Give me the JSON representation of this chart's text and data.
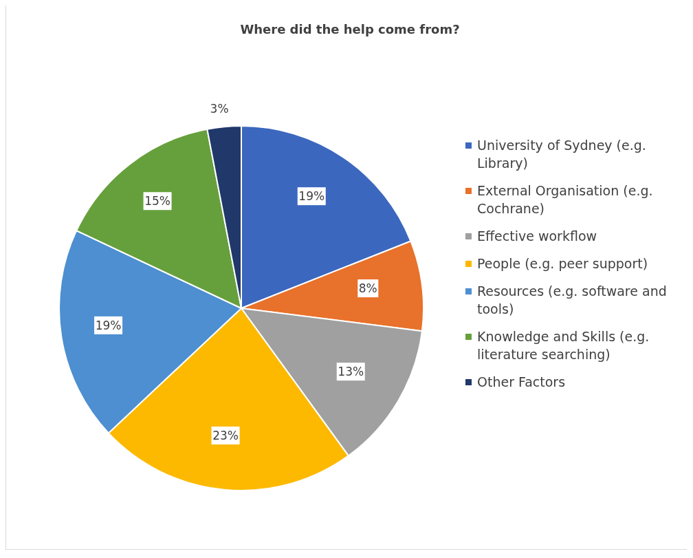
{
  "chart_data": {
    "type": "pie",
    "title": "Where did the help come from?",
    "categories": [
      "University of Sydney (e.g. Library)",
      "External Organisation (e.g. Cochrane)",
      "Effective workflow",
      "People (e.g. peer support)",
      "Resources (e.g. software and tools)",
      "Knowledge and Skills (e.g. literature searching)",
      "Other Factors"
    ],
    "values": [
      19,
      8,
      13,
      23,
      19,
      15,
      3
    ],
    "value_labels": [
      "19%",
      "8%",
      "13%",
      "23%",
      "19%",
      "15%",
      "3%"
    ],
    "colors": [
      "#3b67bf",
      "#e8712b",
      "#a0a0a0",
      "#fdb900",
      "#4d8fd0",
      "#66a03c",
      "#21386a"
    ],
    "legend": "right"
  }
}
